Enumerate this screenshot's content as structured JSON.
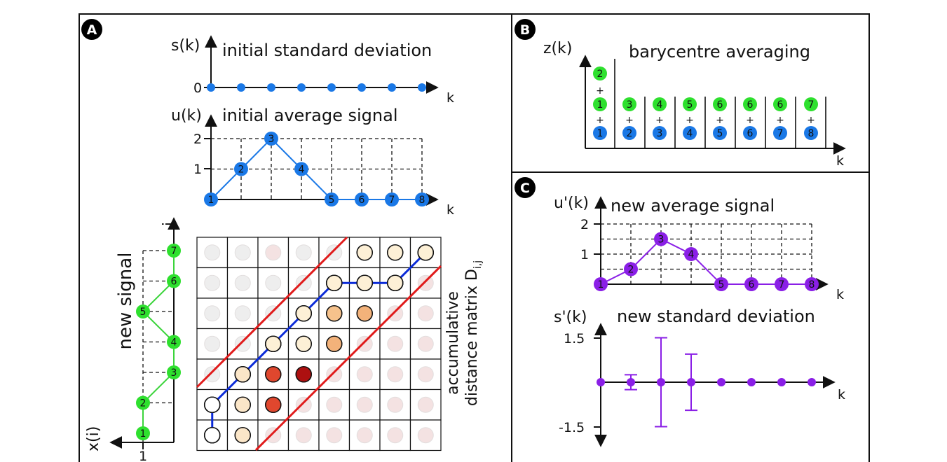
{
  "panels": {
    "a": {
      "badge": "A",
      "std_plot": {
        "ylabel": "s(k)",
        "title": "initial standard deviation",
        "xlabel": "k",
        "zero_label": "0",
        "points": 8
      },
      "avg_plot": {
        "ylabel": "u(k)",
        "title": "initial average signal",
        "xlabel": "k",
        "ticks": [
          "1",
          "2"
        ],
        "values": [
          0,
          1,
          2,
          1,
          0,
          0,
          0,
          0
        ],
        "labels": [
          "1",
          "2",
          "3",
          "4",
          "5",
          "6",
          "7",
          "8"
        ]
      },
      "new_signal": {
        "label": "new signal",
        "ylabel": "i",
        "xlabel": "x(i)",
        "tick": "1",
        "values": [
          1,
          1,
          0,
          0,
          1,
          0,
          0
        ],
        "labels": [
          "1",
          "2",
          "3",
          "4",
          "5",
          "6",
          "7"
        ]
      },
      "matrix": {
        "label_line1": "accumulative",
        "label_line2": "distance matrix D",
        "label_sub": "i,j"
      }
    },
    "b": {
      "badge": "B",
      "ylabel": "z(k)",
      "title": "barycentre averaging",
      "xlabel": "k",
      "plus": "+",
      "top_extra": "2",
      "green": [
        "1",
        "3",
        "4",
        "5",
        "6",
        "6",
        "6",
        "7"
      ],
      "blue": [
        "1",
        "2",
        "3",
        "4",
        "5",
        "6",
        "7",
        "8"
      ]
    },
    "c": {
      "badge": "C",
      "avg_plot": {
        "ylabel": "u'(k)",
        "title": "new average signal",
        "xlabel": "k",
        "ticks": [
          "1",
          "2"
        ],
        "values": [
          0,
          0.5,
          1.5,
          1,
          0,
          0,
          0,
          0
        ],
        "labels": [
          "1",
          "2",
          "3",
          "4",
          "5",
          "6",
          "7",
          "8"
        ]
      },
      "std_plot": {
        "ylabel": "s'(k)",
        "title": "new standard deviation",
        "xlabel": "k",
        "ticks": [
          "1.5",
          "-1.5"
        ],
        "errors": [
          0,
          0.25,
          1.5,
          0.95,
          0,
          0,
          0,
          0
        ]
      }
    }
  },
  "colors": {
    "blue": "#1a78e6",
    "green": "#2ee02e",
    "purple": "#8a1fe6",
    "red": "#e01b1b",
    "path": "#0a2ad8",
    "blue_line": "#3b8fe8",
    "green_line": "#3bd43b"
  }
}
